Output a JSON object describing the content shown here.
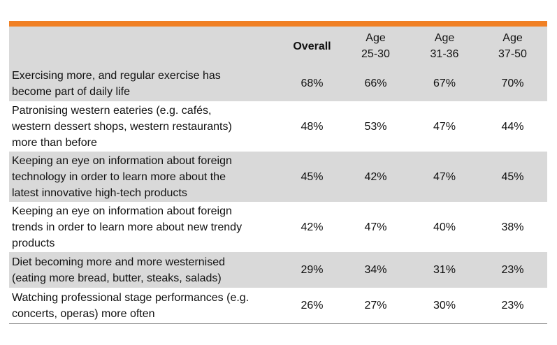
{
  "table": {
    "columns": [
      {
        "id": "description",
        "label": ""
      },
      {
        "id": "overall",
        "label": "Overall"
      },
      {
        "id": "age_25_30",
        "label_line1": "Age",
        "label_line2": "25-30"
      },
      {
        "id": "age_31_36",
        "label_line1": "Age",
        "label_line2": "31-36"
      },
      {
        "id": "age_37_50",
        "label_line1": "Age",
        "label_line2": "37-50"
      }
    ],
    "rows": [
      {
        "lines": [
          "Exercising more, and regular exercise has",
          "become part of daily life"
        ],
        "values": [
          "68%",
          "66%",
          "67%",
          "70%"
        ]
      },
      {
        "lines": [
          "Patronising western eateries (e.g. cafés,",
          "western dessert shops, western restaurants)",
          "more than before"
        ],
        "values": [
          "48%",
          "53%",
          "47%",
          "44%"
        ]
      },
      {
        "lines": [
          "Keeping an eye on information about foreign",
          "technology in order to learn more about the",
          "latest innovative high-tech products"
        ],
        "values": [
          "45%",
          "42%",
          "47%",
          "45%"
        ]
      },
      {
        "lines": [
          "Keeping an eye on information about foreign",
          "trends in order to learn more about new trendy",
          "products"
        ],
        "values": [
          "42%",
          "47%",
          "40%",
          "38%"
        ]
      },
      {
        "lines": [
          "Diet becoming more and more westernised",
          "(eating more bread, butter, steaks, salads)"
        ],
        "values": [
          "29%",
          "34%",
          "31%",
          "23%"
        ]
      },
      {
        "lines": [
          "Watching professional stage performances (e.g.",
          "concerts, operas) more often"
        ],
        "values": [
          "26%",
          "27%",
          "30%",
          "23%"
        ]
      }
    ]
  },
  "colors": {
    "accent_bar": "#f08024",
    "shade": "#d9d9d9"
  }
}
